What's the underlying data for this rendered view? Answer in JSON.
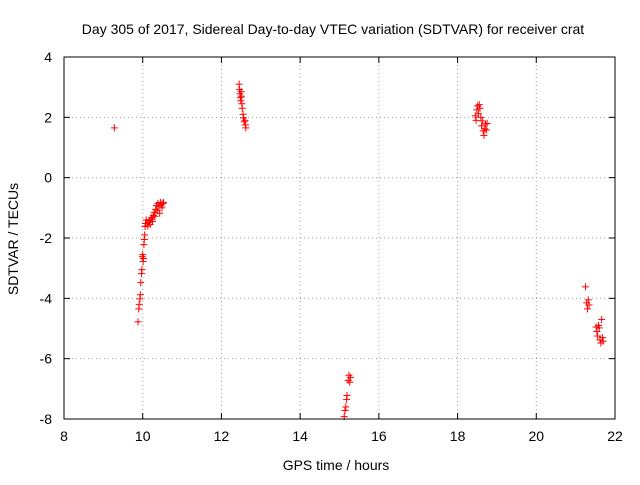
{
  "chart_data": {
    "type": "scatter",
    "title": "Day 305 of 2017, Sidereal Day-to-day VTEC variation (SDTVAR) for receiver crat",
    "xlabel": "GPS time / hours",
    "ylabel": "SDTVAR / TECUs",
    "xlim": [
      8,
      22
    ],
    "ylim": [
      -8,
      4
    ],
    "x_ticks": [
      8,
      10,
      12,
      14,
      16,
      18,
      20,
      22
    ],
    "y_ticks": [
      -8,
      -6,
      -4,
      -2,
      0,
      2,
      4
    ],
    "grid": true,
    "marker": "+",
    "color": "#ff0000",
    "series": [
      {
        "name": "SDTVAR",
        "points": [
          [
            9.28,
            1.65
          ],
          [
            9.88,
            -4.78
          ],
          [
            9.9,
            -4.35
          ],
          [
            9.91,
            -4.2
          ],
          [
            9.93,
            -4.02
          ],
          [
            9.94,
            -3.88
          ],
          [
            9.95,
            -3.48
          ],
          [
            9.97,
            -3.18
          ],
          [
            9.98,
            -3.05
          ],
          [
            9.99,
            -2.62
          ],
          [
            10.0,
            -2.55
          ],
          [
            10.01,
            -2.78
          ],
          [
            10.02,
            -2.68
          ],
          [
            10.03,
            -2.22
          ],
          [
            10.04,
            -2.05
          ],
          [
            10.05,
            -1.9
          ],
          [
            10.06,
            -1.62
          ],
          [
            10.07,
            -1.52
          ],
          [
            10.09,
            -1.4
          ],
          [
            10.11,
            -1.52
          ],
          [
            10.13,
            -1.6
          ],
          [
            10.15,
            -1.48
          ],
          [
            10.17,
            -1.42
          ],
          [
            10.19,
            -1.55
          ],
          [
            10.21,
            -1.38
          ],
          [
            10.23,
            -1.32
          ],
          [
            10.25,
            -1.45
          ],
          [
            10.27,
            -1.25
          ],
          [
            10.29,
            -1.15
          ],
          [
            10.31,
            -1.28
          ],
          [
            10.33,
            -1.05
          ],
          [
            10.35,
            -0.92
          ],
          [
            10.37,
            -1.1
          ],
          [
            10.39,
            -0.85
          ],
          [
            10.41,
            -0.95
          ],
          [
            10.43,
            -1.18
          ],
          [
            10.45,
            -0.82
          ],
          [
            10.47,
            -0.9
          ],
          [
            10.49,
            -1.0
          ],
          [
            10.51,
            -0.86
          ],
          [
            10.53,
            -0.82
          ],
          [
            12.45,
            3.1
          ],
          [
            12.46,
            2.92
          ],
          [
            12.47,
            2.78
          ],
          [
            12.48,
            2.65
          ],
          [
            12.49,
            2.55
          ],
          [
            12.5,
            2.85
          ],
          [
            12.51,
            2.7
          ],
          [
            12.52,
            2.45
          ],
          [
            12.53,
            2.3
          ],
          [
            12.55,
            2.1
          ],
          [
            12.56,
            1.98
          ],
          [
            12.58,
            1.85
          ],
          [
            12.6,
            1.9
          ],
          [
            12.61,
            1.75
          ],
          [
            12.62,
            1.65
          ],
          [
            15.12,
            -7.92
          ],
          [
            15.14,
            -7.72
          ],
          [
            15.16,
            -7.6
          ],
          [
            15.18,
            -7.35
          ],
          [
            15.19,
            -7.22
          ],
          [
            15.22,
            -6.72
          ],
          [
            15.24,
            -6.55
          ],
          [
            15.26,
            -6.78
          ],
          [
            15.28,
            -6.62
          ],
          [
            18.45,
            2.05
          ],
          [
            18.47,
            1.9
          ],
          [
            18.49,
            2.25
          ],
          [
            18.51,
            2.38
          ],
          [
            18.53,
            2.12
          ],
          [
            18.55,
            2.42
          ],
          [
            18.57,
            2.3
          ],
          [
            18.59,
            2.0
          ],
          [
            18.61,
            1.72
          ],
          [
            18.63,
            1.88
          ],
          [
            18.65,
            1.55
          ],
          [
            18.67,
            1.4
          ],
          [
            18.69,
            1.62
          ],
          [
            18.71,
            1.78
          ],
          [
            18.73,
            1.58
          ],
          [
            18.75,
            1.8
          ],
          [
            21.25,
            -3.62
          ],
          [
            21.28,
            -4.15
          ],
          [
            21.3,
            -4.35
          ],
          [
            21.32,
            -4.05
          ],
          [
            21.34,
            -4.22
          ],
          [
            21.52,
            -4.95
          ],
          [
            21.54,
            -5.1
          ],
          [
            21.56,
            -5.25
          ],
          [
            21.58,
            -4.9
          ],
          [
            21.6,
            -4.98
          ],
          [
            21.62,
            -5.38
          ],
          [
            21.64,
            -5.48
          ],
          [
            21.66,
            -4.7
          ],
          [
            21.68,
            -5.3
          ],
          [
            21.7,
            -5.42
          ]
        ]
      }
    ]
  }
}
